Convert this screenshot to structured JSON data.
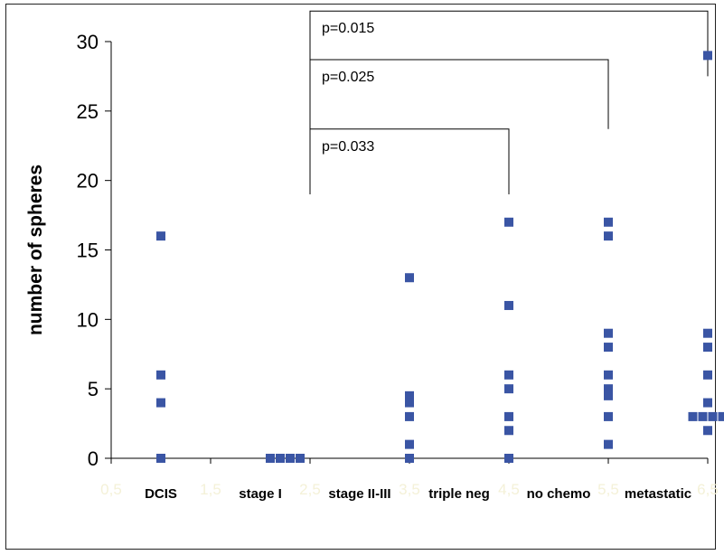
{
  "chart_data": {
    "type": "scatter",
    "title": "",
    "ylabel": "number of spheres",
    "ylim": [
      0,
      30
    ],
    "yticks": [
      "0",
      "5",
      "10",
      "15",
      "20",
      "25",
      "30"
    ],
    "xlim": [
      0.5,
      6.5
    ],
    "xticks_numeric": [
      "0,5",
      "1,5",
      "2,5",
      "3,5",
      "4,5",
      "5,5",
      "6,5"
    ],
    "categories": [
      "DCIS",
      "stage I",
      "stage II-III",
      "triple neg",
      "no chemo",
      "metastatic"
    ],
    "category_x": [
      1.5,
      2.5,
      3.5,
      4.5,
      5.5,
      6.5
    ],
    "marker_color": "#3a55a4",
    "faint_tick_color": "#f4f1d8",
    "series": [
      {
        "category": "DCIS",
        "points": [
          {
            "x": 1.0,
            "y": 16
          },
          {
            "x": 1.0,
            "y": 6
          },
          {
            "x": 1.0,
            "y": 4
          },
          {
            "x": 1.0,
            "y": 0
          }
        ]
      },
      {
        "category": "stage I",
        "points": [
          {
            "x": 2.1,
            "y": 0
          },
          {
            "x": 2.2,
            "y": 0
          },
          {
            "x": 2.3,
            "y": 0
          },
          {
            "x": 2.4,
            "y": 0
          }
        ]
      },
      {
        "category": "stage II-III",
        "points": [
          {
            "x": 3.5,
            "y": 13
          },
          {
            "x": 3.5,
            "y": 4.5
          },
          {
            "x": 3.5,
            "y": 4
          },
          {
            "x": 3.5,
            "y": 3
          },
          {
            "x": 3.5,
            "y": 1
          },
          {
            "x": 3.5,
            "y": 0
          }
        ]
      },
      {
        "category": "triple neg",
        "points": [
          {
            "x": 4.5,
            "y": 17
          },
          {
            "x": 4.5,
            "y": 11
          },
          {
            "x": 4.5,
            "y": 6
          },
          {
            "x": 4.5,
            "y": 5
          },
          {
            "x": 4.5,
            "y": 3
          },
          {
            "x": 4.5,
            "y": 2
          },
          {
            "x": 4.5,
            "y": 0
          }
        ]
      },
      {
        "category": "no chemo",
        "points": [
          {
            "x": 5.5,
            "y": 17
          },
          {
            "x": 5.5,
            "y": 16
          },
          {
            "x": 5.5,
            "y": 9
          },
          {
            "x": 5.5,
            "y": 8
          },
          {
            "x": 5.5,
            "y": 6
          },
          {
            "x": 5.5,
            "y": 5
          },
          {
            "x": 5.5,
            "y": 4.5
          },
          {
            "x": 5.5,
            "y": 3
          },
          {
            "x": 5.5,
            "y": 1
          }
        ]
      },
      {
        "category": "metastatic",
        "points": [
          {
            "x": 6.5,
            "y": 29
          },
          {
            "x": 6.5,
            "y": 9
          },
          {
            "x": 6.5,
            "y": 8
          },
          {
            "x": 6.5,
            "y": 6
          },
          {
            "x": 6.5,
            "y": 4
          },
          {
            "x": 6.35,
            "y": 3
          },
          {
            "x": 6.45,
            "y": 3
          },
          {
            "x": 6.55,
            "y": 3
          },
          {
            "x": 6.65,
            "y": 3
          },
          {
            "x": 6.5,
            "y": 2
          }
        ]
      }
    ],
    "significance": [
      {
        "label": "p=0.015",
        "from": 2.5,
        "to": 6.5,
        "y_top": 32.2,
        "y_left_end": 19,
        "y_right_end": 27.5
      },
      {
        "label": "p=0.025",
        "from": 2.5,
        "to": 5.5,
        "y_top": 28.7,
        "y_left_end": 19,
        "y_right_end": 23.7
      },
      {
        "label": "p=0.033",
        "from": 2.5,
        "to": 4.5,
        "y_top": 23.7,
        "y_left_end": 19,
        "y_right_end": 19
      }
    ]
  }
}
